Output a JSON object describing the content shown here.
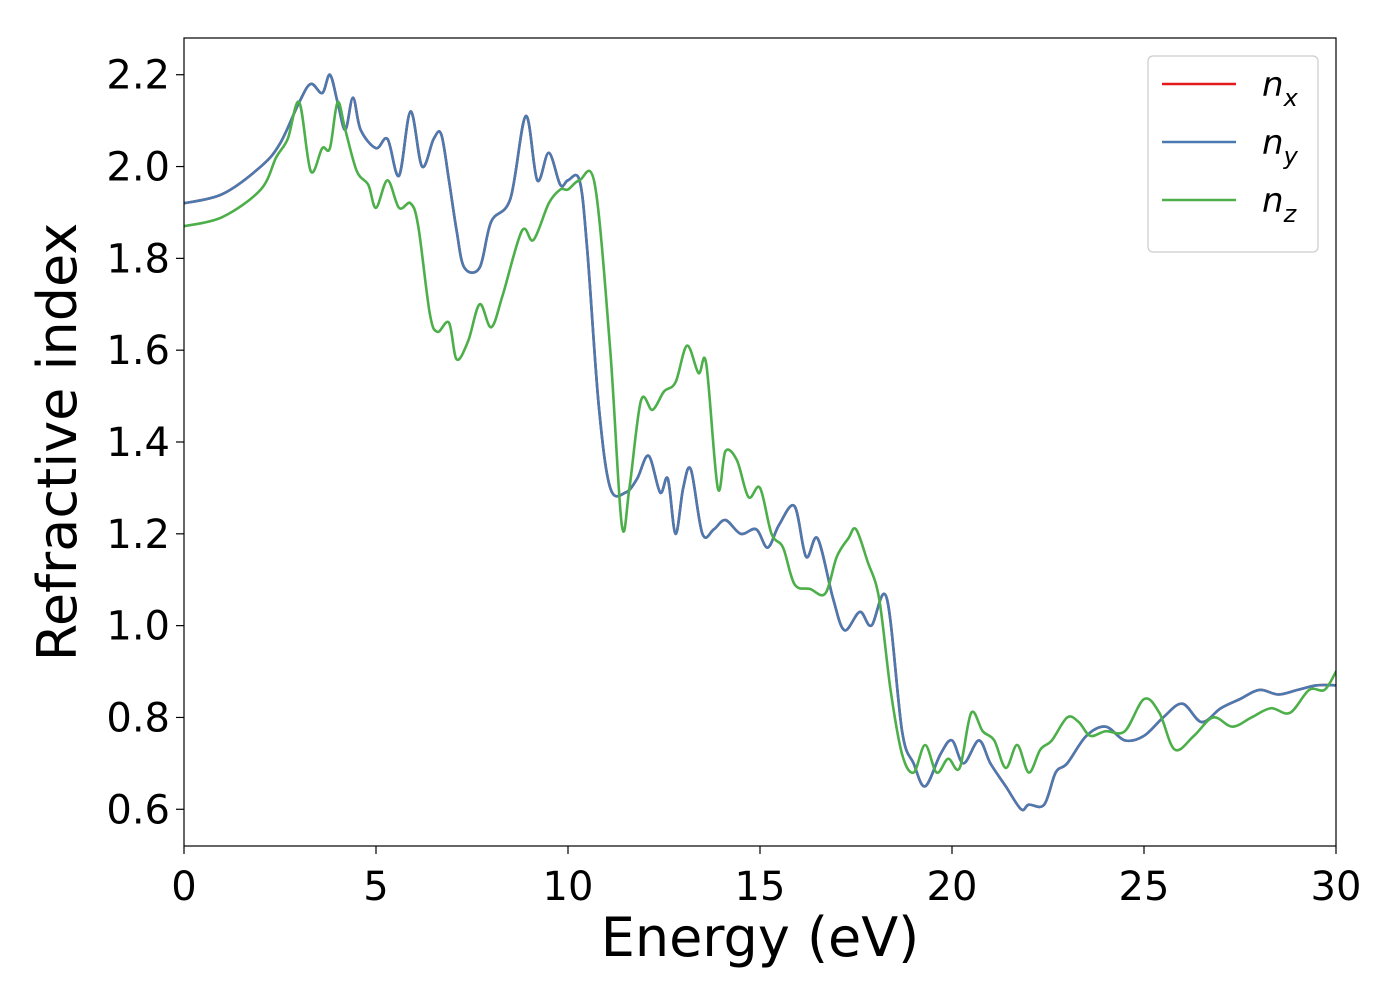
{
  "chart_data": {
    "type": "line",
    "xlabel": "Energy (eV)",
    "ylabel": "Refractive index",
    "xlim": [
      0,
      30
    ],
    "ylim": [
      0.52,
      2.28
    ],
    "xticks": [
      0,
      5,
      10,
      15,
      20,
      25,
      30
    ],
    "yticks": [
      0.6,
      0.8,
      1.0,
      1.2,
      1.4,
      1.6,
      1.8,
      2.0,
      2.2
    ],
    "xtick_labels": [
      "0",
      "5",
      "10",
      "15",
      "20",
      "25",
      "30"
    ],
    "ytick_labels": [
      "0.6",
      "0.8",
      "1.0",
      "1.2",
      "1.4",
      "1.6",
      "1.8",
      "2.0",
      "2.2"
    ],
    "grid": false,
    "legend_position": "top-right",
    "series": [
      {
        "name": "n_x",
        "legend_base": "n",
        "legend_sub": "x",
        "color": "#e41a1c",
        "x": [
          0,
          1,
          2,
          2.5,
          3,
          3.3,
          3.6,
          3.8,
          4.0,
          4.2,
          4.4,
          4.6,
          5.0,
          5.3,
          5.6,
          5.9,
          6.2,
          6.5,
          6.7,
          6.9,
          7.1,
          7.3,
          7.7,
          8.0,
          8.5,
          8.9,
          9.2,
          9.5,
          9.8,
          10.0,
          10.3,
          10.5,
          10.8,
          11.1,
          11.5,
          11.8,
          12.1,
          12.4,
          12.6,
          12.8,
          13.0,
          13.2,
          13.5,
          13.8,
          14.1,
          14.5,
          14.9,
          15.2,
          15.5,
          15.9,
          16.2,
          16.5,
          16.9,
          17.2,
          17.6,
          17.9,
          18.3,
          18.7,
          19.0,
          19.3,
          19.7,
          20.0,
          20.3,
          20.7,
          21.0,
          21.4,
          21.8,
          22.0,
          22.4,
          22.7,
          23.0,
          23.5,
          24.0,
          24.5,
          25.0,
          25.5,
          26.0,
          26.5,
          27.0,
          27.5,
          28.0,
          28.5,
          29.0,
          29.5,
          30.0
        ],
        "values": [
          1.92,
          1.94,
          2.0,
          2.05,
          2.14,
          2.18,
          2.16,
          2.2,
          2.14,
          2.08,
          2.15,
          2.08,
          2.04,
          2.06,
          1.98,
          2.12,
          2.0,
          2.06,
          2.07,
          1.97,
          1.86,
          1.78,
          1.78,
          1.88,
          1.93,
          2.11,
          1.97,
          2.03,
          1.96,
          1.97,
          1.97,
          1.82,
          1.48,
          1.3,
          1.29,
          1.32,
          1.37,
          1.29,
          1.32,
          1.2,
          1.3,
          1.34,
          1.2,
          1.21,
          1.23,
          1.2,
          1.21,
          1.17,
          1.22,
          1.26,
          1.15,
          1.19,
          1.06,
          0.99,
          1.03,
          1.0,
          1.06,
          0.77,
          0.7,
          0.65,
          0.72,
          0.75,
          0.7,
          0.75,
          0.7,
          0.65,
          0.6,
          0.61,
          0.61,
          0.68,
          0.7,
          0.76,
          0.78,
          0.75,
          0.76,
          0.8,
          0.83,
          0.79,
          0.82,
          0.84,
          0.86,
          0.85,
          0.86,
          0.87,
          0.87
        ]
      },
      {
        "name": "n_y",
        "legend_base": "n",
        "legend_sub": "y",
        "color": "#4a7ab0",
        "x": [
          0,
          1,
          2,
          2.5,
          3,
          3.3,
          3.6,
          3.8,
          4.0,
          4.2,
          4.4,
          4.6,
          5.0,
          5.3,
          5.6,
          5.9,
          6.2,
          6.5,
          6.7,
          6.9,
          7.1,
          7.3,
          7.7,
          8.0,
          8.5,
          8.9,
          9.2,
          9.5,
          9.8,
          10.0,
          10.3,
          10.5,
          10.8,
          11.1,
          11.5,
          11.8,
          12.1,
          12.4,
          12.6,
          12.8,
          13.0,
          13.2,
          13.5,
          13.8,
          14.1,
          14.5,
          14.9,
          15.2,
          15.5,
          15.9,
          16.2,
          16.5,
          16.9,
          17.2,
          17.6,
          17.9,
          18.3,
          18.7,
          19.0,
          19.3,
          19.7,
          20.0,
          20.3,
          20.7,
          21.0,
          21.4,
          21.8,
          22.0,
          22.4,
          22.7,
          23.0,
          23.5,
          24.0,
          24.5,
          25.0,
          25.5,
          26.0,
          26.5,
          27.0,
          27.5,
          28.0,
          28.5,
          29.0,
          29.5,
          30.0
        ],
        "values": [
          1.92,
          1.94,
          2.0,
          2.05,
          2.14,
          2.18,
          2.16,
          2.2,
          2.14,
          2.08,
          2.15,
          2.08,
          2.04,
          2.06,
          1.98,
          2.12,
          2.0,
          2.06,
          2.07,
          1.97,
          1.86,
          1.78,
          1.78,
          1.88,
          1.93,
          2.11,
          1.97,
          2.03,
          1.96,
          1.97,
          1.97,
          1.82,
          1.48,
          1.3,
          1.29,
          1.32,
          1.37,
          1.29,
          1.32,
          1.2,
          1.3,
          1.34,
          1.2,
          1.21,
          1.23,
          1.2,
          1.21,
          1.17,
          1.22,
          1.26,
          1.15,
          1.19,
          1.06,
          0.99,
          1.03,
          1.0,
          1.06,
          0.77,
          0.7,
          0.65,
          0.72,
          0.75,
          0.7,
          0.75,
          0.7,
          0.65,
          0.6,
          0.61,
          0.61,
          0.68,
          0.7,
          0.76,
          0.78,
          0.75,
          0.76,
          0.8,
          0.83,
          0.79,
          0.82,
          0.84,
          0.86,
          0.85,
          0.86,
          0.87,
          0.87
        ]
      },
      {
        "name": "n_z",
        "legend_base": "n",
        "legend_sub": "z",
        "color": "#4daf4a",
        "x": [
          0,
          1,
          2,
          2.4,
          2.7,
          3.0,
          3.3,
          3.6,
          3.8,
          4.0,
          4.2,
          4.5,
          4.8,
          5.0,
          5.3,
          5.6,
          5.9,
          6.1,
          6.4,
          6.6,
          6.9,
          7.1,
          7.4,
          7.7,
          8.0,
          8.3,
          8.8,
          9.1,
          9.5,
          9.8,
          10.0,
          10.3,
          10.7,
          11.1,
          11.4,
          11.6,
          11.9,
          12.2,
          12.5,
          12.8,
          13.1,
          13.4,
          13.6,
          13.9,
          14.1,
          14.4,
          14.7,
          15.0,
          15.3,
          15.6,
          15.9,
          16.3,
          16.7,
          17.0,
          17.3,
          17.5,
          17.8,
          18.1,
          18.4,
          18.7,
          19.0,
          19.3,
          19.6,
          19.9,
          20.2,
          20.5,
          20.8,
          21.1,
          21.4,
          21.7,
          22.0,
          22.3,
          22.6,
          23.0,
          23.3,
          23.6,
          24.0,
          24.5,
          25.0,
          25.4,
          25.8,
          26.3,
          26.8,
          27.3,
          27.8,
          28.3,
          28.8,
          29.3,
          29.7,
          30.0
        ],
        "values": [
          1.87,
          1.89,
          1.95,
          2.02,
          2.06,
          2.14,
          1.99,
          2.04,
          2.04,
          2.14,
          2.08,
          1.99,
          1.96,
          1.91,
          1.97,
          1.91,
          1.92,
          1.87,
          1.68,
          1.64,
          1.66,
          1.58,
          1.62,
          1.7,
          1.65,
          1.72,
          1.86,
          1.84,
          1.92,
          1.95,
          1.95,
          1.97,
          1.96,
          1.6,
          1.22,
          1.3,
          1.49,
          1.47,
          1.51,
          1.53,
          1.61,
          1.55,
          1.57,
          1.3,
          1.38,
          1.36,
          1.28,
          1.3,
          1.2,
          1.17,
          1.09,
          1.08,
          1.07,
          1.15,
          1.19,
          1.21,
          1.14,
          1.06,
          0.86,
          0.72,
          0.68,
          0.74,
          0.68,
          0.71,
          0.69,
          0.81,
          0.77,
          0.75,
          0.69,
          0.74,
          0.68,
          0.73,
          0.75,
          0.8,
          0.79,
          0.76,
          0.77,
          0.77,
          0.84,
          0.81,
          0.73,
          0.76,
          0.8,
          0.78,
          0.8,
          0.82,
          0.81,
          0.86,
          0.86,
          0.9
        ]
      }
    ]
  }
}
